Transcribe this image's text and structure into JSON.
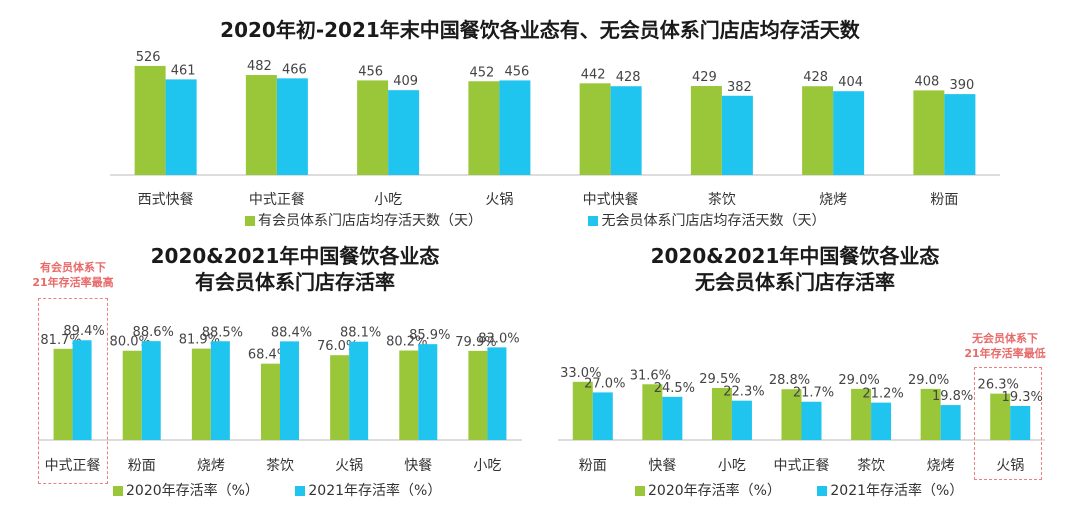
{
  "colors": {
    "series1": "#9ac63a",
    "series2": "#1fc4ef",
    "callout": "#e86a6a",
    "axis": "#bbbbbb"
  },
  "chart_data": [
    {
      "type": "bar",
      "title": "2020年初-2021年末中国餐饮各业态有、无会员体系门店店均存活天数",
      "categories": [
        "西式快餐",
        "中式正餐",
        "小吃",
        "火锅",
        "中式快餐",
        "茶饮",
        "烧烤",
        "粉面"
      ],
      "series": [
        {
          "name": "有会员体系门店店均存活天数（天）",
          "values": [
            526,
            482,
            456,
            452,
            442,
            429,
            428,
            408
          ]
        },
        {
          "name": "无会员体系门店店均存活天数（天）",
          "values": [
            461,
            466,
            409,
            456,
            428,
            382,
            404,
            390
          ]
        }
      ],
      "ylim": [
        0,
        540
      ],
      "grid": false,
      "legend": "bottom"
    },
    {
      "type": "bar",
      "title": "2020&2021年中国餐饮各业态",
      "subtitle": "有会员体系门店存活率",
      "categories": [
        "中式正餐",
        "粉面",
        "烧烤",
        "茶饮",
        "火锅",
        "快餐",
        "小吃"
      ],
      "series": [
        {
          "name": "2020年存活率（%）",
          "values": [
            81.7,
            80.0,
            81.9,
            68.4,
            76.0,
            80.2,
            79.9
          ]
        },
        {
          "name": "2021年存活率（%）",
          "values": [
            89.4,
            88.6,
            88.5,
            88.4,
            88.1,
            85.9,
            83.0
          ]
        }
      ],
      "ylim": [
        0,
        95
      ],
      "annotation": "有会员体系下\n21年存活率最高",
      "highlight_category": "中式正餐",
      "grid": false,
      "legend": "bottom"
    },
    {
      "type": "bar",
      "title": "2020&2021年中国餐饮各业态",
      "subtitle": "无会员体系门店存活率",
      "categories": [
        "粉面",
        "快餐",
        "小吃",
        "中式正餐",
        "茶饮",
        "烧烤",
        "火锅"
      ],
      "series": [
        {
          "name": "2020年存活率（%）",
          "values": [
            33.0,
            31.6,
            29.5,
            28.8,
            29.0,
            29.0,
            26.3
          ]
        },
        {
          "name": "2021年存活率（%）",
          "values": [
            27.0,
            24.5,
            22.3,
            21.7,
            21.2,
            19.8,
            19.3
          ]
        }
      ],
      "ylim": [
        0,
        38
      ],
      "annotation": "无会员体系下\n21年存活率最低",
      "highlight_category": "火锅",
      "grid": false,
      "legend": "bottom"
    }
  ]
}
